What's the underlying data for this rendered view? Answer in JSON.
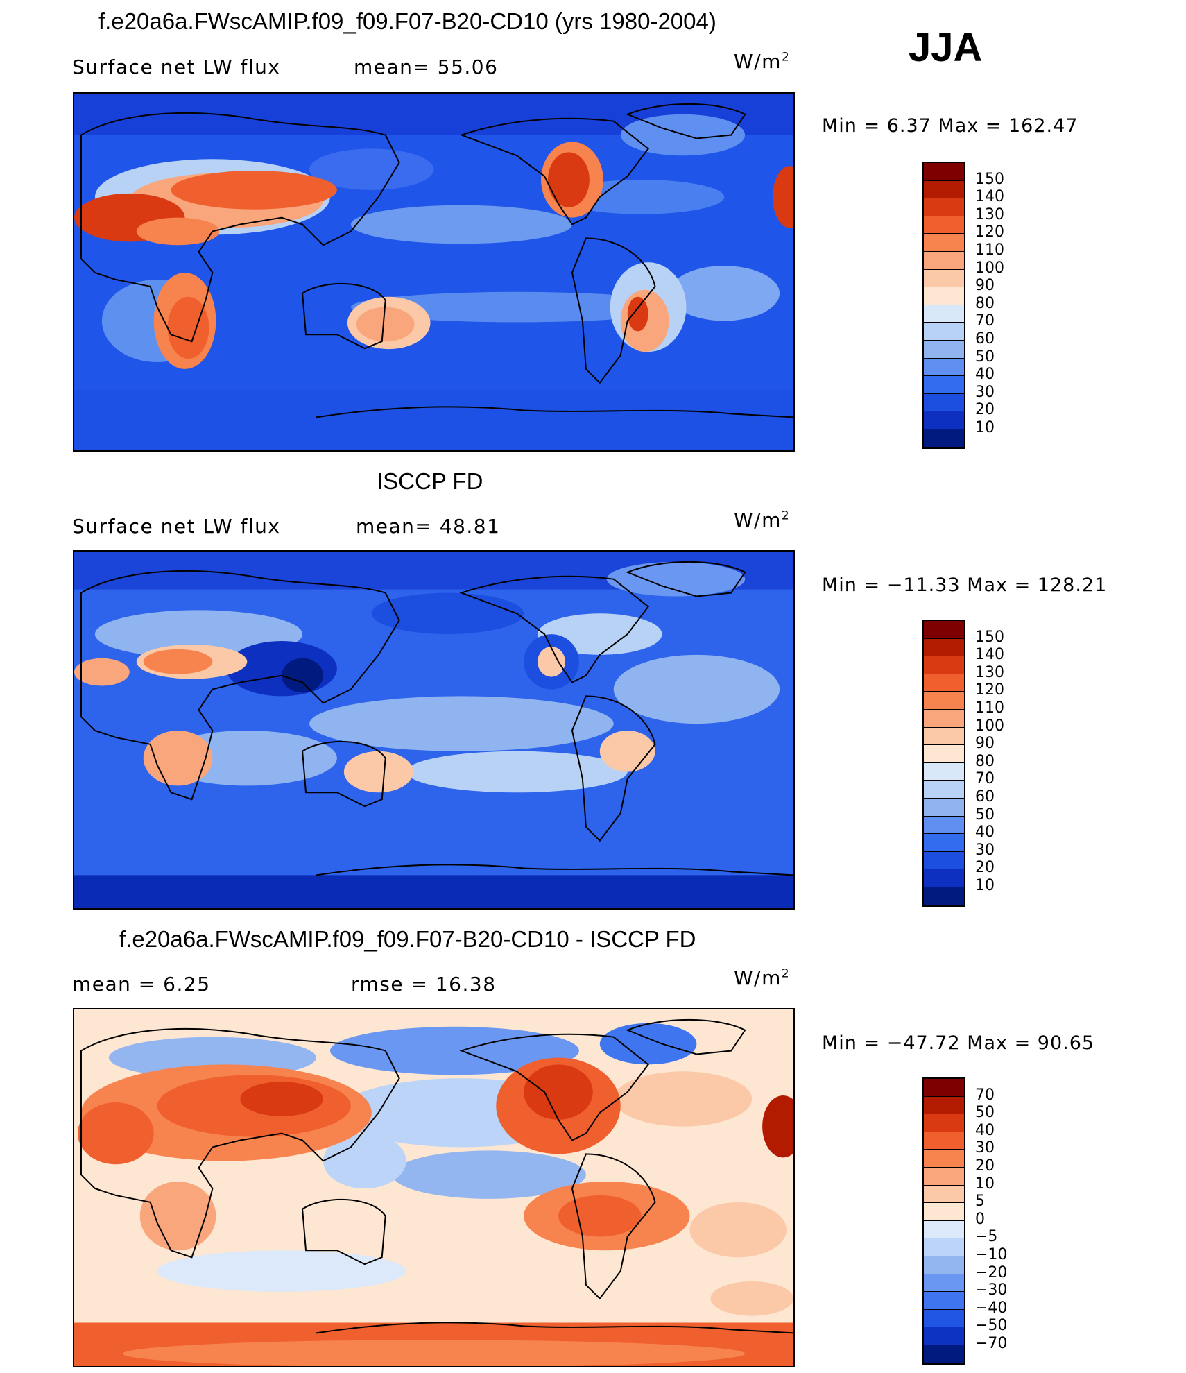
{
  "season": "JJA",
  "panels": [
    {
      "title": "f.e20a6a.FWscAMIP.f09_f09.F07-B20-CD10 (yrs 1980-2004)",
      "left_label": "Surface net LW flux",
      "mid_label": "mean=  55.06",
      "units": "W/m",
      "units_sup": "2",
      "minmax": "Min =    6.37  Max  =  162.47",
      "colorbar_labels": [
        "150",
        "140",
        "130",
        "120",
        "110",
        "100",
        "90",
        "80",
        "70",
        "60",
        "50",
        "40",
        "30",
        "20",
        "10"
      ]
    },
    {
      "title": "ISCCP FD",
      "left_label": "Surface net LW flux",
      "mid_label": "mean=  48.81",
      "units": "W/m",
      "units_sup": "2",
      "minmax": "Min = −11.33  Max  =  128.21",
      "colorbar_labels": [
        "150",
        "140",
        "130",
        "120",
        "110",
        "100",
        "90",
        "80",
        "70",
        "60",
        "50",
        "40",
        "30",
        "20",
        "10"
      ]
    },
    {
      "title": "f.e20a6a.FWscAMIP.f09_f09.F07-B20-CD10 - ISCCP FD",
      "left_label": "mean =    6.25",
      "mid_label": "rmse =    16.38",
      "units": "W/m",
      "units_sup": "2",
      "minmax": "Min = −47.72  Max  =    90.65",
      "colorbar_labels": [
        "70",
        "50",
        "40",
        "30",
        "20",
        "10",
        "5",
        "0",
        "−5",
        "−10",
        "−20",
        "−30",
        "−40",
        "−50",
        "−70"
      ]
    }
  ],
  "colors": {
    "abs_scale": [
      "#7f0000",
      "#b31b00",
      "#d93a12",
      "#f0602e",
      "#f7834f",
      "#f9a67c",
      "#fbc9a8",
      "#fde6d2",
      "#d9e8f9",
      "#b8d2f6",
      "#8fb4f0",
      "#5f8ff0",
      "#346cf0",
      "#1c4fe0",
      "#0d30c0",
      "#001a80"
    ],
    "diff_scale": [
      "#7f0000",
      "#b31b00",
      "#d93a12",
      "#f0602e",
      "#f7834f",
      "#f9a67c",
      "#fbc9a8",
      "#fde6d2",
      "#dce9fa",
      "#bcd4f7",
      "#93b6f1",
      "#6a97f1",
      "#3f75ef",
      "#2155e3",
      "#0d33c3",
      "#001a80"
    ]
  }
}
